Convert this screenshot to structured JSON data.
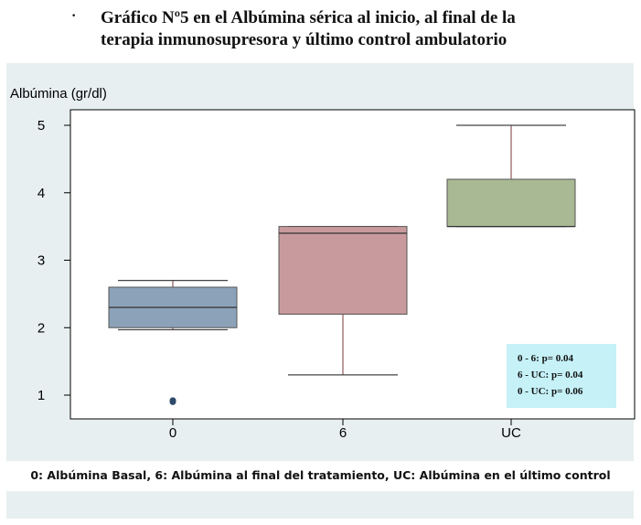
{
  "title": {
    "bullet": "·",
    "line1": "Gráfico Nº5 en el Albúmina sérica al inicio, al final de la",
    "line2": "terapia inmunosupresora  y último control ambulatorio"
  },
  "caption": "0: Albúmina Basal, 6: Albúmina al final del tratamiento,  UC: Albúmina en el último control",
  "stats": [
    "0 - 6: p= 0.04",
    "6 - UC: p= 0.04",
    "0 - UC: p= 0.06"
  ],
  "colors": {
    "panel_bg": "#e8eff1",
    "stats_bg": "#c5f1f7",
    "box_0": "#8ca2b8",
    "box_6": "#c99a9d",
    "box_UC": "#a8b994"
  },
  "chart_data": {
    "type": "box",
    "ylabel": "Albúmina (gr/dl)",
    "xlabel": "",
    "ylim": [
      0.7,
      5.2
    ],
    "yticks": [
      1,
      2,
      3,
      4,
      5
    ],
    "categories": [
      "0",
      "6",
      "UC"
    ],
    "grid": false,
    "boxes": [
      {
        "category": "0",
        "min": 1.97,
        "q1": 2.0,
        "median": 2.3,
        "q3": 2.6,
        "max": 2.7,
        "outliers": [
          0.9,
          0.92
        ],
        "color": "#8ca2b8"
      },
      {
        "category": "6",
        "min": 1.3,
        "q1": 2.2,
        "median": 3.4,
        "q3": 3.5,
        "max": 3.5,
        "outliers": [],
        "color": "#c99a9d"
      },
      {
        "category": "UC",
        "min": 3.5,
        "q1": 3.5,
        "median": 3.5,
        "q3": 4.2,
        "max": 5.0,
        "outliers": [],
        "color": "#a8b994"
      }
    ]
  }
}
